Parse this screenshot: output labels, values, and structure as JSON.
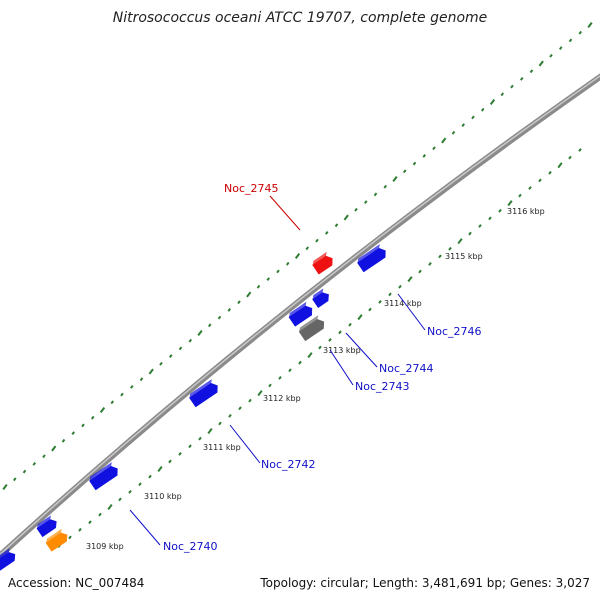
{
  "title": "Nitrosococcus oceani ATCC 19707, complete genome",
  "footer": {
    "accession": "Accession: NC_007484",
    "summary": "Topology: circular; Length: 3,481,691 bp; Genes: 3,027"
  },
  "colors": {
    "backbone": "#8a8a8a",
    "tick": "#2e7d32",
    "gene_forward": "#1010e0",
    "gene_reverse": "#1010e0",
    "gene_highlight": "#ee1111",
    "gene_pseudo": "#666666",
    "gene_rna": "#ff8c00",
    "label_normal": "#1010c8",
    "label_highlight": "#cc0000"
  },
  "ticks": [
    "3109 kbp",
    "3110 kbp",
    "3111 kbp",
    "3112 kbp",
    "3113 kbp",
    "3114 kbp",
    "3115 kbp",
    "3116 kbp"
  ],
  "genes": [
    {
      "label": "Noc_2740",
      "type": "normal"
    },
    {
      "label": "Noc_2742",
      "type": "normal"
    },
    {
      "label": "Noc_2743",
      "type": "normal"
    },
    {
      "label": "Noc_2744",
      "type": "normal"
    },
    {
      "label": "Noc_2745",
      "type": "highlight"
    },
    {
      "label": "Noc_2746",
      "type": "normal"
    }
  ]
}
